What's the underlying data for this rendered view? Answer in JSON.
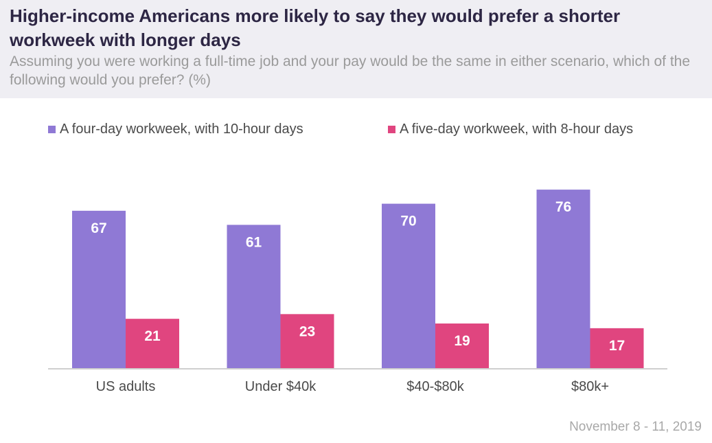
{
  "title": "Higher-income Americans more likely to say they would prefer a shorter workweek with longer days",
  "subtitle": "Assuming you were working a full-time job and your pay would be the same in either scenario, which of the following would you prefer? (%)",
  "footer": "November 8 - 11, 2019",
  "colors": {
    "series1": "#8f79d5",
    "series2": "#e0457f",
    "header_bg": "#efeef3"
  },
  "chart_data": {
    "type": "bar",
    "title": "Higher-income Americans more likely to say they would prefer a shorter workweek with longer days",
    "xlabel": "",
    "ylabel": "",
    "ylim": [
      0,
      100
    ],
    "grid": false,
    "legend": "top",
    "categories": [
      "US adults",
      "Under $40k",
      "$40-$80k",
      "$80k+"
    ],
    "series": [
      {
        "name": "A four-day workweek, with 10-hour days",
        "values": [
          67,
          61,
          70,
          76
        ],
        "color": "#8f79d5"
      },
      {
        "name": "A five-day workweek, with 8-hour days",
        "values": [
          21,
          23,
          19,
          17
        ],
        "color": "#e0457f"
      }
    ]
  }
}
